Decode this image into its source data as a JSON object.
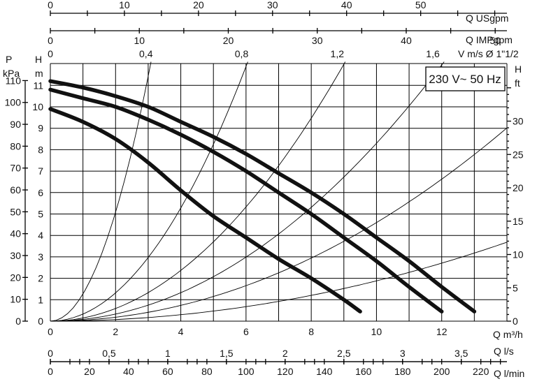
{
  "chart_data": {
    "type": "line",
    "title": "",
    "annotation": "230 V~ 50 Hz",
    "xlabel": "Q m³/h",
    "ylabel": "H m",
    "xlim": [
      0,
      14
    ],
    "ylim": [
      0,
      12
    ],
    "grid": true,
    "axes": {
      "q_usgpm": {
        "label": "Q USgpm",
        "ticks": [
          "0",
          "10",
          "20",
          "30",
          "40",
          "50"
        ]
      },
      "q_impgpm": {
        "label": "Q IMPgpm",
        "ticks": [
          "0",
          "10",
          "20",
          "30",
          "40",
          "50"
        ]
      },
      "velocity": {
        "label": "V m/s Ø 1\"1/2",
        "ticks": [
          "0",
          "0,4",
          "0,8",
          "1,2",
          "1,6"
        ]
      },
      "pressure": {
        "label_top": "P",
        "label_bottom": "kPa",
        "ticks": [
          "0",
          "10",
          "20",
          "30",
          "40",
          "50",
          "60",
          "70",
          "80",
          "90",
          "100",
          "110"
        ]
      },
      "head_m": {
        "label_top": "H",
        "label_bottom": "m",
        "ticks": [
          "0",
          "1",
          "2",
          "3",
          "4",
          "5",
          "6",
          "7",
          "8",
          "9",
          "10",
          "11"
        ]
      },
      "head_ft": {
        "label_top": "H",
        "label_bottom": "ft",
        "ticks": [
          "0",
          "5",
          "10",
          "15",
          "20",
          "25",
          "30"
        ]
      },
      "q_m3h": {
        "label": "Q m³/h",
        "ticks": [
          "0",
          "2",
          "4",
          "6",
          "8",
          "10",
          "12"
        ]
      },
      "q_ls": {
        "label": "Q l/s",
        "ticks": [
          "0",
          "0,5",
          "1",
          "1,5",
          "2",
          "2,5",
          "3",
          "3,5"
        ]
      },
      "q_lmin": {
        "label": "Q l/min",
        "ticks": [
          "0",
          "20",
          "40",
          "60",
          "80",
          "100",
          "120",
          "140",
          "160",
          "180",
          "200",
          "220"
        ]
      }
    },
    "series": [
      {
        "values": [
          [
            0,
            9.9
          ],
          [
            1,
            9.3
          ],
          [
            2,
            8.5
          ],
          [
            3,
            7.4
          ],
          [
            4,
            6.1
          ],
          [
            5,
            4.9
          ],
          [
            6,
            3.9
          ],
          [
            7,
            2.9
          ],
          [
            8,
            2.0
          ],
          [
            9,
            1.0
          ],
          [
            9.5,
            0.45
          ]
        ]
      },
      {
        "values": [
          [
            0,
            10.8
          ],
          [
            1,
            10.4
          ],
          [
            2,
            10.0
          ],
          [
            3,
            9.4
          ],
          [
            4,
            8.7
          ],
          [
            5,
            7.9
          ],
          [
            6,
            7.0
          ],
          [
            7,
            6.0
          ],
          [
            8,
            5.0
          ],
          [
            9,
            3.9
          ],
          [
            10,
            2.8
          ],
          [
            11,
            1.6
          ],
          [
            12,
            0.45
          ]
        ]
      },
      {
        "values": [
          [
            0,
            11.2
          ],
          [
            1,
            10.9
          ],
          [
            2,
            10.5
          ],
          [
            3,
            10.0
          ],
          [
            4,
            9.3
          ],
          [
            5,
            8.6
          ],
          [
            6,
            7.8
          ],
          [
            7,
            6.9
          ],
          [
            8,
            6.0
          ],
          [
            9,
            5.0
          ],
          [
            10,
            3.9
          ],
          [
            11,
            2.8
          ],
          [
            12,
            1.6
          ],
          [
            13,
            0.45
          ]
        ]
      }
    ],
    "system_curves": [
      {
        "k": 1.27
      },
      {
        "k": 0.33
      },
      {
        "k": 0.148
      },
      {
        "k": 0.083
      },
      {
        "k": 0.046
      },
      {
        "k": 0.0188
      }
    ]
  }
}
